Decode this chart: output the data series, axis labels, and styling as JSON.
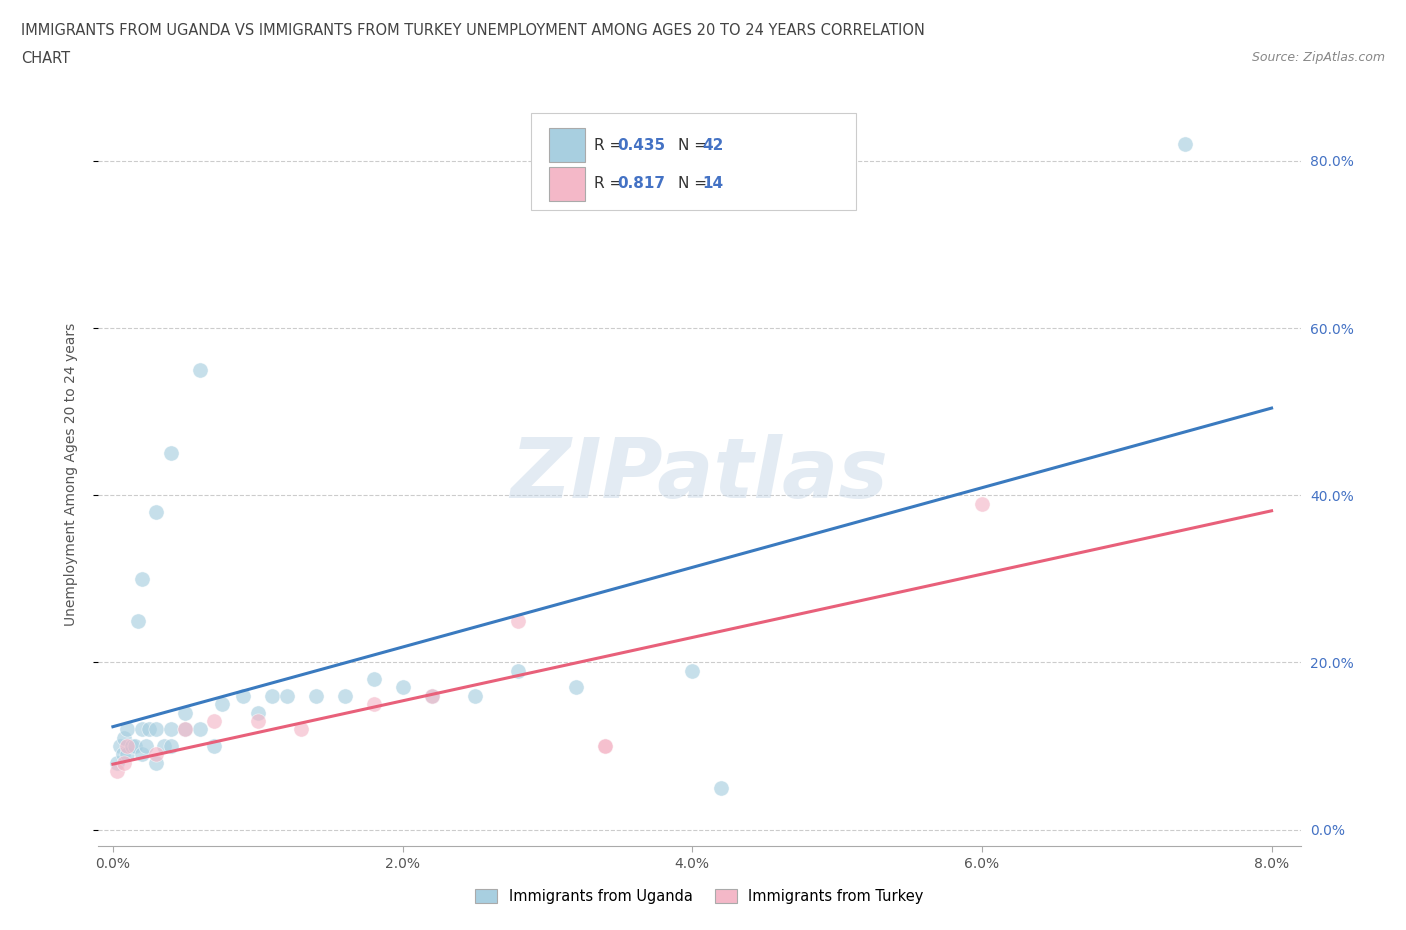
{
  "title_line1": "IMMIGRANTS FROM UGANDA VS IMMIGRANTS FROM TURKEY UNEMPLOYMENT AMONG AGES 20 TO 24 YEARS CORRELATION",
  "title_line2": "CHART",
  "source": "Source: ZipAtlas.com",
  "xlabel_ticks": [
    "0.0%",
    "2.0%",
    "4.0%",
    "6.0%",
    "8.0%"
  ],
  "xlabel_vals": [
    0.0,
    0.02,
    0.04,
    0.06,
    0.08
  ],
  "ylabel": "Unemployment Among Ages 20 to 24 years",
  "ylabel_ticks": [
    "0.0%",
    "20.0%",
    "40.0%",
    "60.0%",
    "80.0%"
  ],
  "ylabel_vals": [
    0.0,
    0.2,
    0.4,
    0.6,
    0.8
  ],
  "xlim": [
    -0.001,
    0.082
  ],
  "ylim": [
    -0.02,
    0.87
  ],
  "uganda_R": 0.435,
  "uganda_N": 42,
  "turkey_R": 0.817,
  "turkey_N": 14,
  "uganda_color": "#a8cfe0",
  "turkey_color": "#f4b8c8",
  "uganda_line_color": "#3a7abf",
  "turkey_line_color": "#e8607a",
  "watermark": "ZIPatlas",
  "background_color": "#ffffff",
  "uganda_points_x": [
    0.0003,
    0.0005,
    0.0007,
    0.0008,
    0.001,
    0.001,
    0.0013,
    0.0015,
    0.0017,
    0.002,
    0.002,
    0.002,
    0.0023,
    0.0025,
    0.003,
    0.003,
    0.003,
    0.0035,
    0.004,
    0.004,
    0.004,
    0.005,
    0.005,
    0.006,
    0.006,
    0.007,
    0.0075,
    0.009,
    0.01,
    0.011,
    0.012,
    0.014,
    0.016,
    0.018,
    0.02,
    0.022,
    0.025,
    0.028,
    0.032,
    0.04,
    0.042,
    0.074
  ],
  "uganda_points_y": [
    0.08,
    0.1,
    0.09,
    0.11,
    0.09,
    0.12,
    0.1,
    0.1,
    0.25,
    0.09,
    0.12,
    0.3,
    0.1,
    0.12,
    0.08,
    0.12,
    0.38,
    0.1,
    0.1,
    0.12,
    0.45,
    0.12,
    0.14,
    0.12,
    0.55,
    0.1,
    0.15,
    0.16,
    0.14,
    0.16,
    0.16,
    0.16,
    0.16,
    0.18,
    0.17,
    0.16,
    0.16,
    0.19,
    0.17,
    0.19,
    0.05,
    0.82
  ],
  "turkey_points_x": [
    0.0003,
    0.0008,
    0.001,
    0.003,
    0.005,
    0.007,
    0.01,
    0.013,
    0.018,
    0.022,
    0.028,
    0.034,
    0.034,
    0.06
  ],
  "turkey_points_y": [
    0.07,
    0.08,
    0.1,
    0.09,
    0.12,
    0.13,
    0.13,
    0.12,
    0.15,
    0.16,
    0.25,
    0.1,
    0.1,
    0.39
  ]
}
